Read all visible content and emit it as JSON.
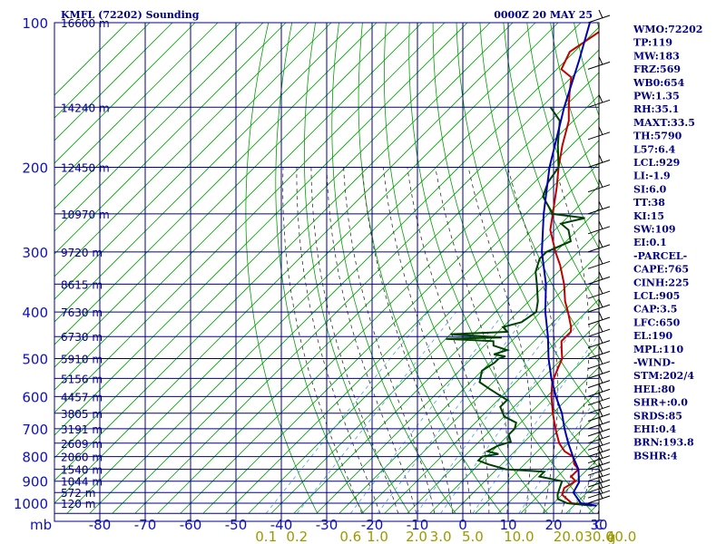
{
  "title_left": "KMFL (72202) Sounding",
  "title_right": "0000Z 20 MAY 25",
  "chart_data": {
    "type": "skew-t",
    "pressure_ticks": [
      100,
      200,
      300,
      400,
      500,
      600,
      700,
      800,
      900,
      1000
    ],
    "temperature_ticks": [
      -80,
      -70,
      -60,
      -50,
      -40,
      -30,
      -20,
      -10,
      0,
      10,
      20,
      30
    ],
    "temperature_unit_label": "C",
    "pressure_unit_label": "mb",
    "mixing_ratio_ticks": [
      "0.1",
      "0.2",
      "0.6",
      "1.0",
      "2.0",
      "3.0",
      "5.0",
      "10.0",
      "20.0",
      "30.0",
      "40.0"
    ],
    "mixing_ratio_unit_label": "g",
    "height_labels": [
      {
        "p": 100,
        "label": "16600 m"
      },
      {
        "p": 150,
        "label": "14240 m"
      },
      {
        "p": 200,
        "label": "12450 m"
      },
      {
        "p": 250,
        "label": "10970 m"
      },
      {
        "p": 300,
        "label": "9720 m"
      },
      {
        "p": 350,
        "label": "8615 m"
      },
      {
        "p": 400,
        "label": "7630 m"
      },
      {
        "p": 450,
        "label": "6730 m"
      },
      {
        "p": 500,
        "label": "5910 m"
      },
      {
        "p": 550,
        "label": "5156 m"
      },
      {
        "p": 600,
        "label": "4457 m"
      },
      {
        "p": 650,
        "label": "3805 m"
      },
      {
        "p": 700,
        "label": "3191 m"
      },
      {
        "p": 750,
        "label": "2609 m"
      },
      {
        "p": 800,
        "label": "2060 m"
      },
      {
        "p": 850,
        "label": "1540 m"
      },
      {
        "p": 900,
        "label": "1044 m"
      },
      {
        "p": 950,
        "label": "572 m"
      },
      {
        "p": 1000,
        "label": "120 m"
      }
    ],
    "series": [
      {
        "name": "Temperature",
        "color": "#c00000",
        "points": [
          [
            1012,
            30
          ],
          [
            1000,
            24
          ],
          [
            960,
            20
          ],
          [
            930,
            19
          ],
          [
            900,
            20
          ],
          [
            880,
            18
          ],
          [
            850,
            18
          ],
          [
            830,
            16
          ],
          [
            800,
            14
          ],
          [
            780,
            11
          ],
          [
            750,
            8
          ],
          [
            700,
            4
          ],
          [
            650,
            0
          ],
          [
            600,
            -4
          ],
          [
            560,
            -7
          ],
          [
            520,
            -9
          ],
          [
            500,
            -10
          ],
          [
            480,
            -12
          ],
          [
            460,
            -14
          ],
          [
            440,
            -14
          ],
          [
            430,
            -15
          ],
          [
            400,
            -19
          ],
          [
            380,
            -22
          ],
          [
            350,
            -26
          ],
          [
            320,
            -31
          ],
          [
            300,
            -35
          ],
          [
            270,
            -41
          ],
          [
            250,
            -44
          ],
          [
            220,
            -49
          ],
          [
            200,
            -53
          ],
          [
            180,
            -57
          ],
          [
            160,
            -61
          ],
          [
            150,
            -64
          ],
          [
            140,
            -67
          ],
          [
            130,
            -70
          ],
          [
            125,
            -74
          ],
          [
            115,
            -76
          ],
          [
            100,
            -73
          ]
        ]
      },
      {
        "name": "Dewpoint",
        "color": "#004000",
        "points": [
          [
            1012,
            29
          ],
          [
            1000,
            23
          ],
          [
            980,
            20
          ],
          [
            960,
            19
          ],
          [
            930,
            18
          ],
          [
            900,
            17
          ],
          [
            880,
            11
          ],
          [
            860,
            11
          ],
          [
            850,
            2
          ],
          [
            830,
            -3
          ],
          [
            815,
            -6
          ],
          [
            800,
            -6
          ],
          [
            790,
            -3
          ],
          [
            780,
            -6
          ],
          [
            760,
            -5
          ],
          [
            745,
            -3
          ],
          [
            720,
            -5
          ],
          [
            700,
            -5
          ],
          [
            680,
            -6
          ],
          [
            660,
            -10
          ],
          [
            630,
            -13
          ],
          [
            610,
            -13
          ],
          [
            580,
            -19
          ],
          [
            560,
            -23
          ],
          [
            530,
            -25
          ],
          [
            510,
            -24
          ],
          [
            500,
            -24
          ],
          [
            495,
            -23
          ],
          [
            490,
            -26
          ],
          [
            480,
            -24
          ],
          [
            470,
            -28
          ],
          [
            460,
            -29
          ],
          [
            455,
            -40
          ],
          [
            452,
            -28
          ],
          [
            445,
            -40
          ],
          [
            440,
            -28
          ],
          [
            430,
            -30
          ],
          [
            420,
            -27
          ],
          [
            400,
            -26
          ],
          [
            380,
            -28
          ],
          [
            350,
            -32
          ],
          [
            330,
            -35
          ],
          [
            310,
            -37
          ],
          [
            300,
            -37
          ],
          [
            285,
            -34
          ],
          [
            270,
            -37
          ],
          [
            262,
            -40
          ],
          [
            255,
            -36
          ],
          [
            250,
            -44
          ],
          [
            230,
            -50
          ],
          [
            215,
            -52
          ],
          [
            200,
            -53
          ],
          [
            180,
            -58
          ],
          [
            160,
            -63
          ],
          [
            150,
            -68
          ]
        ]
      },
      {
        "name": "Parcel",
        "color": "#0000b0",
        "points": [
          [
            1012,
            30
          ],
          [
            1000,
            26
          ],
          [
            950,
            22
          ],
          [
            905,
            21
          ],
          [
            850,
            18
          ],
          [
            800,
            14
          ],
          [
            750,
            10
          ],
          [
            700,
            6
          ],
          [
            650,
            2
          ],
          [
            600,
            -3
          ],
          [
            550,
            -8
          ],
          [
            500,
            -13
          ],
          [
            450,
            -18
          ],
          [
            400,
            -24
          ],
          [
            350,
            -30
          ],
          [
            300,
            -38
          ],
          [
            250,
            -46
          ],
          [
            200,
            -55
          ],
          [
            150,
            -65
          ],
          [
            120,
            -72
          ],
          [
            100,
            -78
          ]
        ]
      }
    ]
  },
  "indices": [
    "WMO:72202",
    "TP:119",
    "MW:183",
    "FRZ:569",
    "WB0:654",
    "PW:1.35",
    "RH:35.1",
    "MAXT:33.5",
    "TH:5790",
    "L57:6.4",
    "LCL:929",
    "LI:-1.9",
    "SI:6.0",
    "TT:38",
    "KI:15",
    "SW:109",
    "EI:0.1",
    "-PARCEL-",
    "CAPE:765",
    "CINH:225",
    "LCL:905",
    "CAP:3.5",
    "LFC:650",
    "EL:190",
    "MPL:110",
    "-WIND-",
    "STM:202/4",
    "HEL:80",
    "SHR+:0.0",
    "SRDS:85",
    "EHI:0.4",
    "BRN:193.8",
    "BSHR:4"
  ]
}
